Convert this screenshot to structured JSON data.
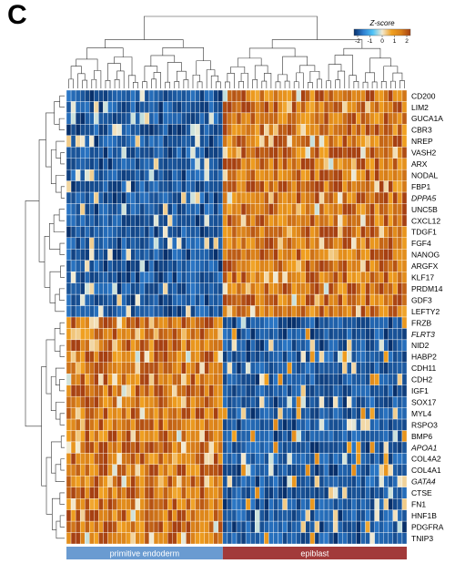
{
  "panel_label": "C",
  "colorbar": {
    "title": "Z-score",
    "ticks": [
      "-2",
      "-1",
      "0",
      "1",
      "2"
    ],
    "colors": [
      "#08306b",
      "#2f7fd0",
      "#4fc3f7",
      "#f2ead2",
      "#f0a020",
      "#d9801a",
      "#a64012"
    ]
  },
  "chart_data": {
    "type": "heatmap",
    "title": "",
    "value_range": [
      -2,
      2
    ],
    "genes": [
      "CD200",
      "LIM2",
      "GUCA1A",
      "CBR3",
      "NREP",
      "VASH2",
      "ARX",
      "NODAL",
      "FBP1",
      "DPPA5",
      "UNC5B",
      "CXCL12",
      "TDGF1",
      "FGF4",
      "NANOG",
      "ARGFX",
      "KLF17",
      "PRDM14",
      "GDF3",
      "LEFTY2",
      "FRZB",
      "FLRT3",
      "NID2",
      "HABP2",
      "CDH11",
      "CDH2",
      "IGF1",
      "SOX17",
      "MYL4",
      "RSPO3",
      "BMP6",
      "APOA1",
      "COL4A2",
      "COL4A1",
      "GATA4",
      "CTSE",
      "FN1",
      "HNF1B",
      "PDGFRA",
      "TNIP3"
    ],
    "italic_genes": [
      "DPPA5",
      "FLRT3",
      "APOA1",
      "GATA4"
    ],
    "gene_clusters": [
      {
        "genes_from": "CD200",
        "genes_to": "LEFTY2",
        "high_in": "epiblast"
      },
      {
        "genes_from": "FRZB",
        "genes_to": "TNIP3",
        "high_in": "primitive endoderm"
      }
    ],
    "sample_groups": [
      {
        "name": "primitive endoderm",
        "color": "#6a9bd1",
        "n_columns": 34
      },
      {
        "name": "epiblast",
        "color": "#a23a3a",
        "n_columns": 40
      }
    ],
    "pattern": "Epiblast marker genes (CD200–LEFTY2) show high Z-scores in epiblast cells and low in primitive endoderm cells; primitive endoderm markers (FRZB–TNIP3) show the reverse."
  }
}
